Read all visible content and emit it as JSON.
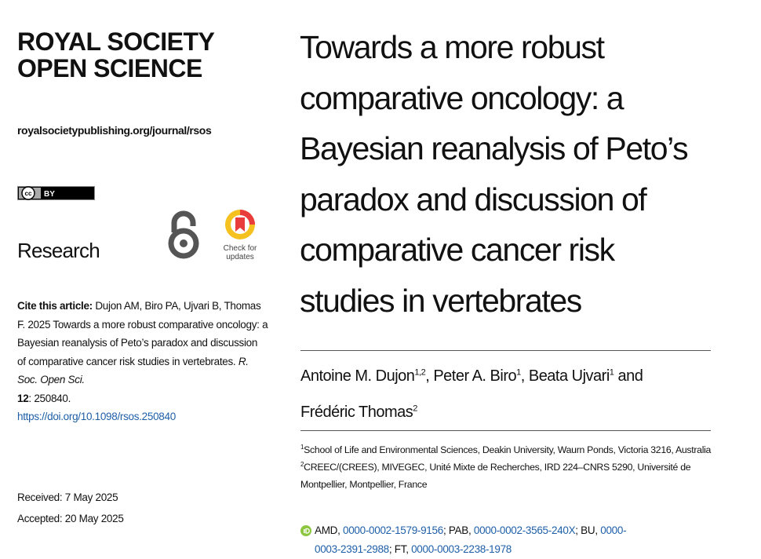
{
  "journal": {
    "name_lines": [
      "ROYAL SOCIETY",
      "OPEN SCIENCE"
    ],
    "url": "royalsocietypublishing.org/journal/rsos",
    "license": [
      "cc",
      "BY"
    ],
    "check_updates": [
      "Check for",
      "updates"
    ],
    "section": "Research"
  },
  "citation": {
    "label": "Cite this article:",
    "text": " Dujon AM, Biro PA, Ujvari B, Thomas F. 2025 Towards a more robust comparative oncology: a Bayesian reanalysis of Peto’s paradox and discussion of comparative cancer risk studies in vertebrates. ",
    "journal": "R. Soc. Open Sci.",
    "volume": "12",
    "article": ": 250840.",
    "doi": "https://doi.org/10.1098/rsos.250840"
  },
  "dates": [
    "Received: 7 May 2025",
    "Accepted: 20 May 2025"
  ],
  "title_lines": [
    "Towards a more robust",
    "comparative oncology: a",
    "Bayesian reanalysis of Peto’s",
    "paradox and discussion of",
    "comparative cancer risk",
    "studies in vertebrates"
  ],
  "authors": [
    {
      "text": "Antoine M. Dujon",
      "sup": "1,2"
    },
    {
      "text": ", Peter A. Biro",
      "sup": "1"
    },
    {
      "text": ", Beata Ujvari",
      "sup": "1"
    },
    {
      "text": " and Frédéric Thomas",
      "sup": "2"
    }
  ],
  "affiliations": [
    {
      "sup": "1",
      "text": "School of Life and Environmental Sciences, Deakin University, Waurn Ponds, Victoria 3216, Australia"
    },
    {
      "sup": "2",
      "text": "CREEC/(CREES), MIVEGEC, Unité Mixte de Recherches, IRD 224–CNRS 5290, Université de Montpellier, Montpellier, France"
    }
  ],
  "orcid": [
    {
      "text": "AMD, ",
      "id": "0000-0002-1579-9156"
    },
    {
      "text": "; PAB, ",
      "id": "0000-0002-3565-240X"
    },
    {
      "text": "; BU, ",
      "id": "0000-0003-2391-2988"
    },
    {
      "text": "; FT, ",
      "id": "0000-0003-2238-1978"
    }
  ]
}
